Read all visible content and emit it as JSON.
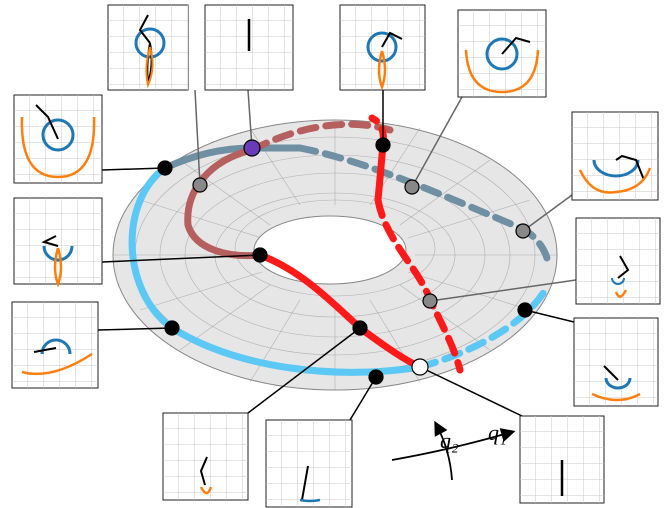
{
  "axis_labels": {
    "q2": "q₂",
    "q1": "q₁"
  }
}
